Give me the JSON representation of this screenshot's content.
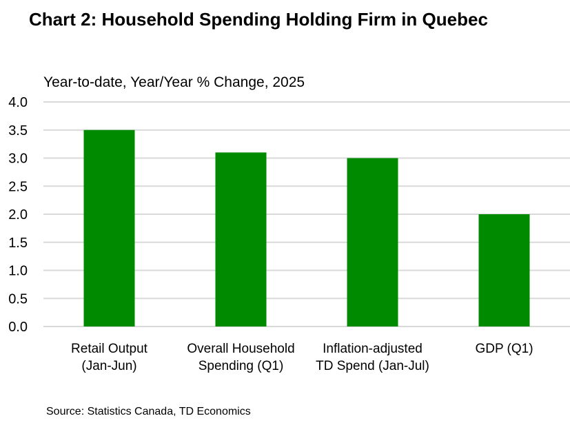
{
  "chart_data": {
    "type": "bar",
    "title": "Chart 2: Household Spending Holding Firm in Quebec",
    "subtitle": "Year-to-date, Year/Year % Change, 2025",
    "categories": [
      [
        "Retail Output",
        "(Jan-Jun)"
      ],
      [
        "Overall Household",
        "Spending (Q1)"
      ],
      [
        "Inflation-adjusted",
        "TD Spend (Jan-Jul)"
      ],
      [
        "GDP (Q1)"
      ]
    ],
    "values": [
      3.5,
      3.1,
      3.0,
      2.0
    ],
    "ylim": [
      0,
      4.0
    ],
    "yticks": [
      "0.0",
      "0.5",
      "1.0",
      "1.5",
      "2.0",
      "2.5",
      "3.0",
      "3.5",
      "4.0"
    ],
    "xlabel": "",
    "ylabel": "",
    "grid": true,
    "bar_color": "#008a00",
    "grid_color": "#d9d9d9",
    "source": "Source: Statistics Canada, TD Economics"
  }
}
